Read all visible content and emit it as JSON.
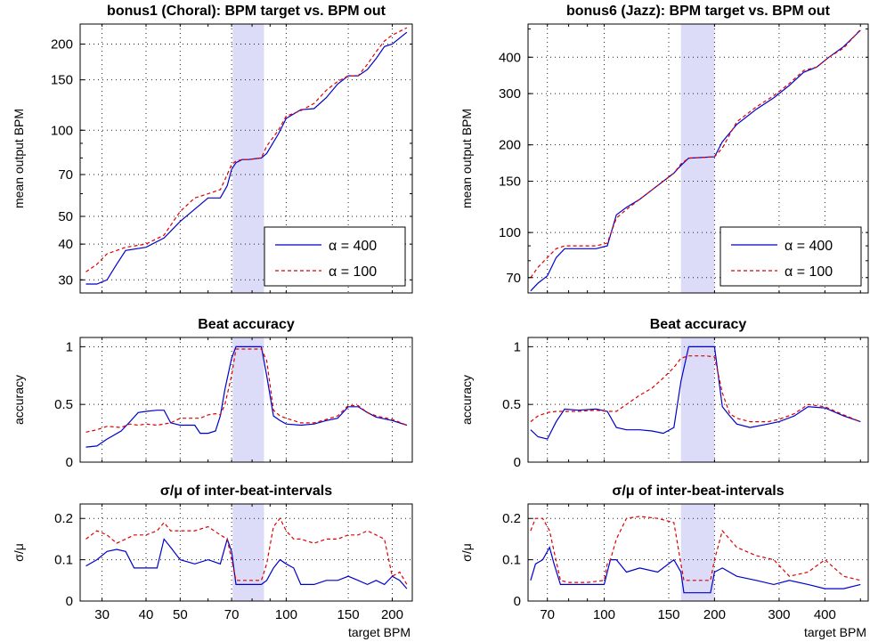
{
  "chart_data": [
    {
      "type": "line",
      "title": "bonus1 (Choral): BPM target vs. BPM out",
      "xlabel": "",
      "ylabel": "mean output BPM",
      "xscale": "log",
      "yscale": "log",
      "xlim": [
        26,
        228
      ],
      "ylim": [
        27,
        235
      ],
      "yticks": [
        30,
        40,
        50,
        70,
        100,
        150,
        200
      ],
      "grid": true,
      "shaded_band": [
        70.5,
        86.5
      ],
      "legend": "bottom-right",
      "series": [
        {
          "name": "α = 400",
          "color": "#0000cc",
          "dash": "solid",
          "x": [
            27,
            29,
            31,
            33,
            35,
            40,
            45,
            50,
            55,
            60,
            65,
            68,
            70,
            72,
            75,
            78,
            85,
            88,
            95,
            100,
            110,
            120,
            130,
            140,
            150,
            160,
            170,
            180,
            190,
            200,
            220
          ],
          "values": [
            29,
            29,
            30,
            34,
            38,
            39,
            42,
            48,
            53,
            58,
            58,
            64,
            73,
            77,
            79,
            79,
            80,
            83,
            97,
            110,
            118,
            119,
            130,
            145,
            155,
            155,
            163,
            178,
            196,
            200,
            220
          ]
        },
        {
          "name": "α = 100",
          "color": "#dd0000",
          "dash": "dashed",
          "x": [
            27,
            29,
            31,
            33,
            35,
            40,
            45,
            50,
            55,
            60,
            65,
            68,
            70,
            72,
            75,
            78,
            85,
            88,
            95,
            100,
            110,
            120,
            130,
            140,
            150,
            160,
            170,
            180,
            190,
            200,
            220
          ],
          "values": [
            32,
            34,
            37,
            38,
            39,
            40,
            43,
            52,
            58,
            60,
            62,
            70,
            76,
            78,
            79,
            79,
            80,
            88,
            100,
            112,
            117,
            124,
            138,
            148,
            155,
            155,
            170,
            188,
            205,
            215,
            228
          ]
        }
      ]
    },
    {
      "type": "line",
      "title": "bonus6 (Jazz): BPM target vs. BPM out",
      "xlabel": "",
      "ylabel": "mean output BPM",
      "xscale": "log",
      "yscale": "log",
      "xlim": [
        62,
        525
      ],
      "ylim": [
        62,
        520
      ],
      "yticks": [
        70,
        100,
        150,
        200,
        300,
        400
      ],
      "grid": true,
      "shaded_band": [
        162,
        200
      ],
      "legend": "bottom-right",
      "series": [
        {
          "name": "α = 400",
          "color": "#0000cc",
          "dash": "solid",
          "x": [
            63,
            66,
            70,
            74,
            78,
            85,
            95,
            102,
            108,
            115,
            125,
            135,
            145,
            155,
            162,
            170,
            200,
            210,
            230,
            260,
            290,
            320,
            350,
            380,
            410,
            450,
            500
          ],
          "values": [
            63,
            67,
            71,
            82,
            88,
            88,
            88,
            90,
            115,
            122,
            130,
            140,
            150,
            160,
            170,
            180,
            182,
            205,
            235,
            265,
            290,
            320,
            355,
            370,
            400,
            435,
            495
          ]
        },
        {
          "name": "α = 100",
          "color": "#dd0000",
          "dash": "dashed",
          "x": [
            63,
            66,
            70,
            74,
            78,
            85,
            95,
            102,
            108,
            115,
            125,
            135,
            145,
            155,
            162,
            170,
            200,
            210,
            230,
            260,
            290,
            320,
            350,
            380,
            410,
            450,
            500
          ],
          "values": [
            70,
            76,
            82,
            88,
            90,
            90,
            90,
            92,
            112,
            120,
            130,
            140,
            150,
            160,
            172,
            180,
            182,
            195,
            240,
            270,
            295,
            325,
            360,
            370,
            400,
            430,
            498
          ]
        }
      ]
    },
    {
      "type": "line",
      "title": "Beat accuracy",
      "xlabel": "",
      "ylabel": "accuracy",
      "xscale": "log",
      "xlim": [
        26,
        228
      ],
      "ylim": [
        0,
        1.08
      ],
      "yticks": [
        0,
        0.5,
        1
      ],
      "ytick_labels": [
        "0",
        "0.5",
        "1"
      ],
      "grid": true,
      "shaded_band": [
        70.5,
        86.5
      ],
      "series": [
        {
          "name": "α = 400",
          "color": "#0000cc",
          "dash": "solid",
          "x": [
            27,
            29,
            31,
            34,
            36,
            38,
            40,
            43,
            45,
            47,
            50,
            55,
            57,
            60,
            63,
            65,
            67,
            70,
            72,
            76,
            80,
            85,
            88,
            92,
            96,
            100,
            110,
            120,
            130,
            140,
            150,
            160,
            170,
            180,
            200,
            220
          ],
          "values": [
            0.13,
            0.14,
            0.2,
            0.27,
            0.35,
            0.43,
            0.44,
            0.45,
            0.45,
            0.34,
            0.32,
            0.32,
            0.25,
            0.25,
            0.27,
            0.4,
            0.63,
            0.9,
            1.0,
            1.0,
            1.0,
            1.0,
            0.75,
            0.4,
            0.36,
            0.33,
            0.32,
            0.33,
            0.36,
            0.38,
            0.48,
            0.48,
            0.43,
            0.39,
            0.36,
            0.32
          ]
        },
        {
          "name": "α = 100",
          "color": "#dd0000",
          "dash": "dashed",
          "x": [
            27,
            29,
            31,
            34,
            36,
            38,
            40,
            43,
            45,
            47,
            50,
            55,
            57,
            60,
            63,
            65,
            67,
            70,
            72,
            76,
            80,
            85,
            88,
            92,
            96,
            100,
            110,
            120,
            130,
            140,
            150,
            160,
            170,
            180,
            200,
            220
          ],
          "values": [
            0.26,
            0.28,
            0.31,
            0.3,
            0.33,
            0.32,
            0.33,
            0.32,
            0.33,
            0.34,
            0.38,
            0.38,
            0.38,
            0.41,
            0.42,
            0.41,
            0.5,
            0.75,
            0.98,
            0.98,
            0.98,
            0.98,
            0.88,
            0.45,
            0.4,
            0.38,
            0.34,
            0.34,
            0.37,
            0.4,
            0.49,
            0.49,
            0.43,
            0.4,
            0.37,
            0.32
          ]
        }
      ]
    },
    {
      "type": "line",
      "title": "Beat accuracy",
      "xlabel": "",
      "ylabel": "accuracy",
      "xscale": "log",
      "xlim": [
        62,
        525
      ],
      "ylim": [
        0,
        1.08
      ],
      "yticks": [
        0,
        0.5,
        1
      ],
      "ytick_labels": [
        "0",
        "0.5",
        "1"
      ],
      "grid": true,
      "shaded_band": [
        162,
        200
      ],
      "series": [
        {
          "name": "α = 400",
          "color": "#0000cc",
          "dash": "solid",
          "x": [
            63,
            66,
            70,
            74,
            78,
            85,
            95,
            102,
            108,
            115,
            125,
            135,
            145,
            155,
            162,
            170,
            180,
            190,
            200,
            210,
            220,
            230,
            250,
            280,
            300,
            330,
            360,
            400,
            450,
            500
          ],
          "values": [
            0.28,
            0.22,
            0.2,
            0.35,
            0.46,
            0.45,
            0.46,
            0.44,
            0.3,
            0.28,
            0.28,
            0.27,
            0.25,
            0.3,
            0.7,
            1.0,
            1.0,
            1.0,
            1.0,
            0.48,
            0.4,
            0.33,
            0.3,
            0.33,
            0.35,
            0.4,
            0.48,
            0.47,
            0.4,
            0.35
          ]
        },
        {
          "name": "α = 100",
          "color": "#dd0000",
          "dash": "dashed",
          "x": [
            63,
            66,
            70,
            74,
            78,
            85,
            95,
            102,
            108,
            115,
            125,
            135,
            145,
            155,
            162,
            170,
            180,
            190,
            200,
            210,
            220,
            230,
            250,
            280,
            300,
            330,
            360,
            400,
            450,
            500
          ],
          "values": [
            0.35,
            0.4,
            0.43,
            0.44,
            0.44,
            0.44,
            0.45,
            0.44,
            0.44,
            0.5,
            0.58,
            0.64,
            0.73,
            0.82,
            0.9,
            0.92,
            0.92,
            0.92,
            0.91,
            0.6,
            0.42,
            0.38,
            0.35,
            0.35,
            0.37,
            0.42,
            0.5,
            0.48,
            0.41,
            0.35
          ]
        }
      ]
    },
    {
      "type": "line",
      "title": "σ/μ of inter-beat-intervals",
      "xlabel": "target BPM",
      "ylabel": "σ/μ",
      "xscale": "log",
      "xlim": [
        26,
        228
      ],
      "ylim": [
        0,
        0.235
      ],
      "xticks": [
        30,
        40,
        50,
        70,
        100,
        150,
        200
      ],
      "yticks": [
        0,
        0.1,
        0.2
      ],
      "ytick_labels": [
        "0",
        "0.1",
        "0.2"
      ],
      "grid": true,
      "shaded_band": [
        70.5,
        86.5
      ],
      "series": [
        {
          "name": "α = 400",
          "color": "#0000cc",
          "dash": "solid",
          "x": [
            27,
            29,
            31,
            33,
            35,
            37,
            40,
            43,
            45,
            47,
            50,
            55,
            60,
            65,
            68,
            70,
            72,
            75,
            80,
            85,
            88,
            92,
            96,
            100,
            105,
            110,
            120,
            130,
            140,
            150,
            160,
            170,
            180,
            190,
            200,
            210,
            220
          ],
          "values": [
            0.085,
            0.1,
            0.12,
            0.125,
            0.12,
            0.08,
            0.08,
            0.08,
            0.15,
            0.13,
            0.1,
            0.09,
            0.1,
            0.09,
            0.15,
            0.12,
            0.04,
            0.04,
            0.04,
            0.04,
            0.05,
            0.08,
            0.1,
            0.09,
            0.08,
            0.04,
            0.04,
            0.05,
            0.05,
            0.06,
            0.05,
            0.04,
            0.05,
            0.04,
            0.06,
            0.05,
            0.03
          ]
        },
        {
          "name": "α = 100",
          "color": "#dd0000",
          "dash": "dashed",
          "x": [
            27,
            29,
            31,
            33,
            35,
            37,
            40,
            43,
            45,
            47,
            50,
            55,
            60,
            65,
            68,
            70,
            72,
            75,
            80,
            85,
            88,
            92,
            96,
            100,
            105,
            110,
            120,
            130,
            140,
            150,
            160,
            170,
            180,
            190,
            200,
            210,
            220
          ],
          "values": [
            0.15,
            0.17,
            0.16,
            0.14,
            0.15,
            0.16,
            0.16,
            0.17,
            0.19,
            0.17,
            0.17,
            0.17,
            0.18,
            0.16,
            0.15,
            0.1,
            0.05,
            0.05,
            0.05,
            0.05,
            0.09,
            0.18,
            0.2,
            0.17,
            0.15,
            0.15,
            0.14,
            0.15,
            0.15,
            0.16,
            0.16,
            0.17,
            0.16,
            0.15,
            0.06,
            0.07,
            0.04
          ]
        }
      ]
    },
    {
      "type": "line",
      "title": "σ/μ of inter-beat-intervals",
      "xlabel": "target BPM",
      "ylabel": "σ/μ",
      "xscale": "log",
      "xlim": [
        62,
        525
      ],
      "ylim": [
        0,
        0.235
      ],
      "xticks": [
        70,
        100,
        150,
        200,
        300,
        400
      ],
      "yticks": [
        0,
        0.1,
        0.2
      ],
      "ytick_labels": [
        "0",
        "0.1",
        "0.2"
      ],
      "grid": true,
      "shaded_band": [
        162,
        200
      ],
      "series": [
        {
          "name": "α = 400",
          "color": "#0000cc",
          "dash": "solid",
          "x": [
            63,
            65,
            68,
            71,
            73,
            76,
            80,
            90,
            100,
            102,
            104,
            108,
            115,
            125,
            140,
            155,
            162,
            165,
            175,
            185,
            195,
            200,
            210,
            230,
            260,
            290,
            320,
            360,
            400,
            450,
            500
          ],
          "values": [
            0.05,
            0.09,
            0.1,
            0.13,
            0.09,
            0.04,
            0.04,
            0.04,
            0.04,
            0.07,
            0.1,
            0.1,
            0.07,
            0.08,
            0.07,
            0.1,
            0.07,
            0.02,
            0.02,
            0.02,
            0.02,
            0.07,
            0.08,
            0.06,
            0.05,
            0.04,
            0.05,
            0.04,
            0.03,
            0.03,
            0.04
          ]
        },
        {
          "name": "α = 100",
          "color": "#dd0000",
          "dash": "dashed",
          "x": [
            63,
            65,
            68,
            71,
            73,
            76,
            80,
            90,
            100,
            102,
            104,
            108,
            115,
            125,
            140,
            155,
            162,
            165,
            175,
            185,
            195,
            200,
            210,
            230,
            260,
            290,
            320,
            360,
            400,
            450,
            500
          ],
          "values": [
            0.17,
            0.2,
            0.2,
            0.17,
            0.12,
            0.05,
            0.045,
            0.045,
            0.05,
            0.09,
            0.1,
            0.15,
            0.2,
            0.205,
            0.2,
            0.19,
            0.09,
            0.05,
            0.05,
            0.05,
            0.05,
            0.1,
            0.17,
            0.13,
            0.11,
            0.1,
            0.06,
            0.07,
            0.1,
            0.06,
            0.05
          ]
        }
      ]
    }
  ]
}
